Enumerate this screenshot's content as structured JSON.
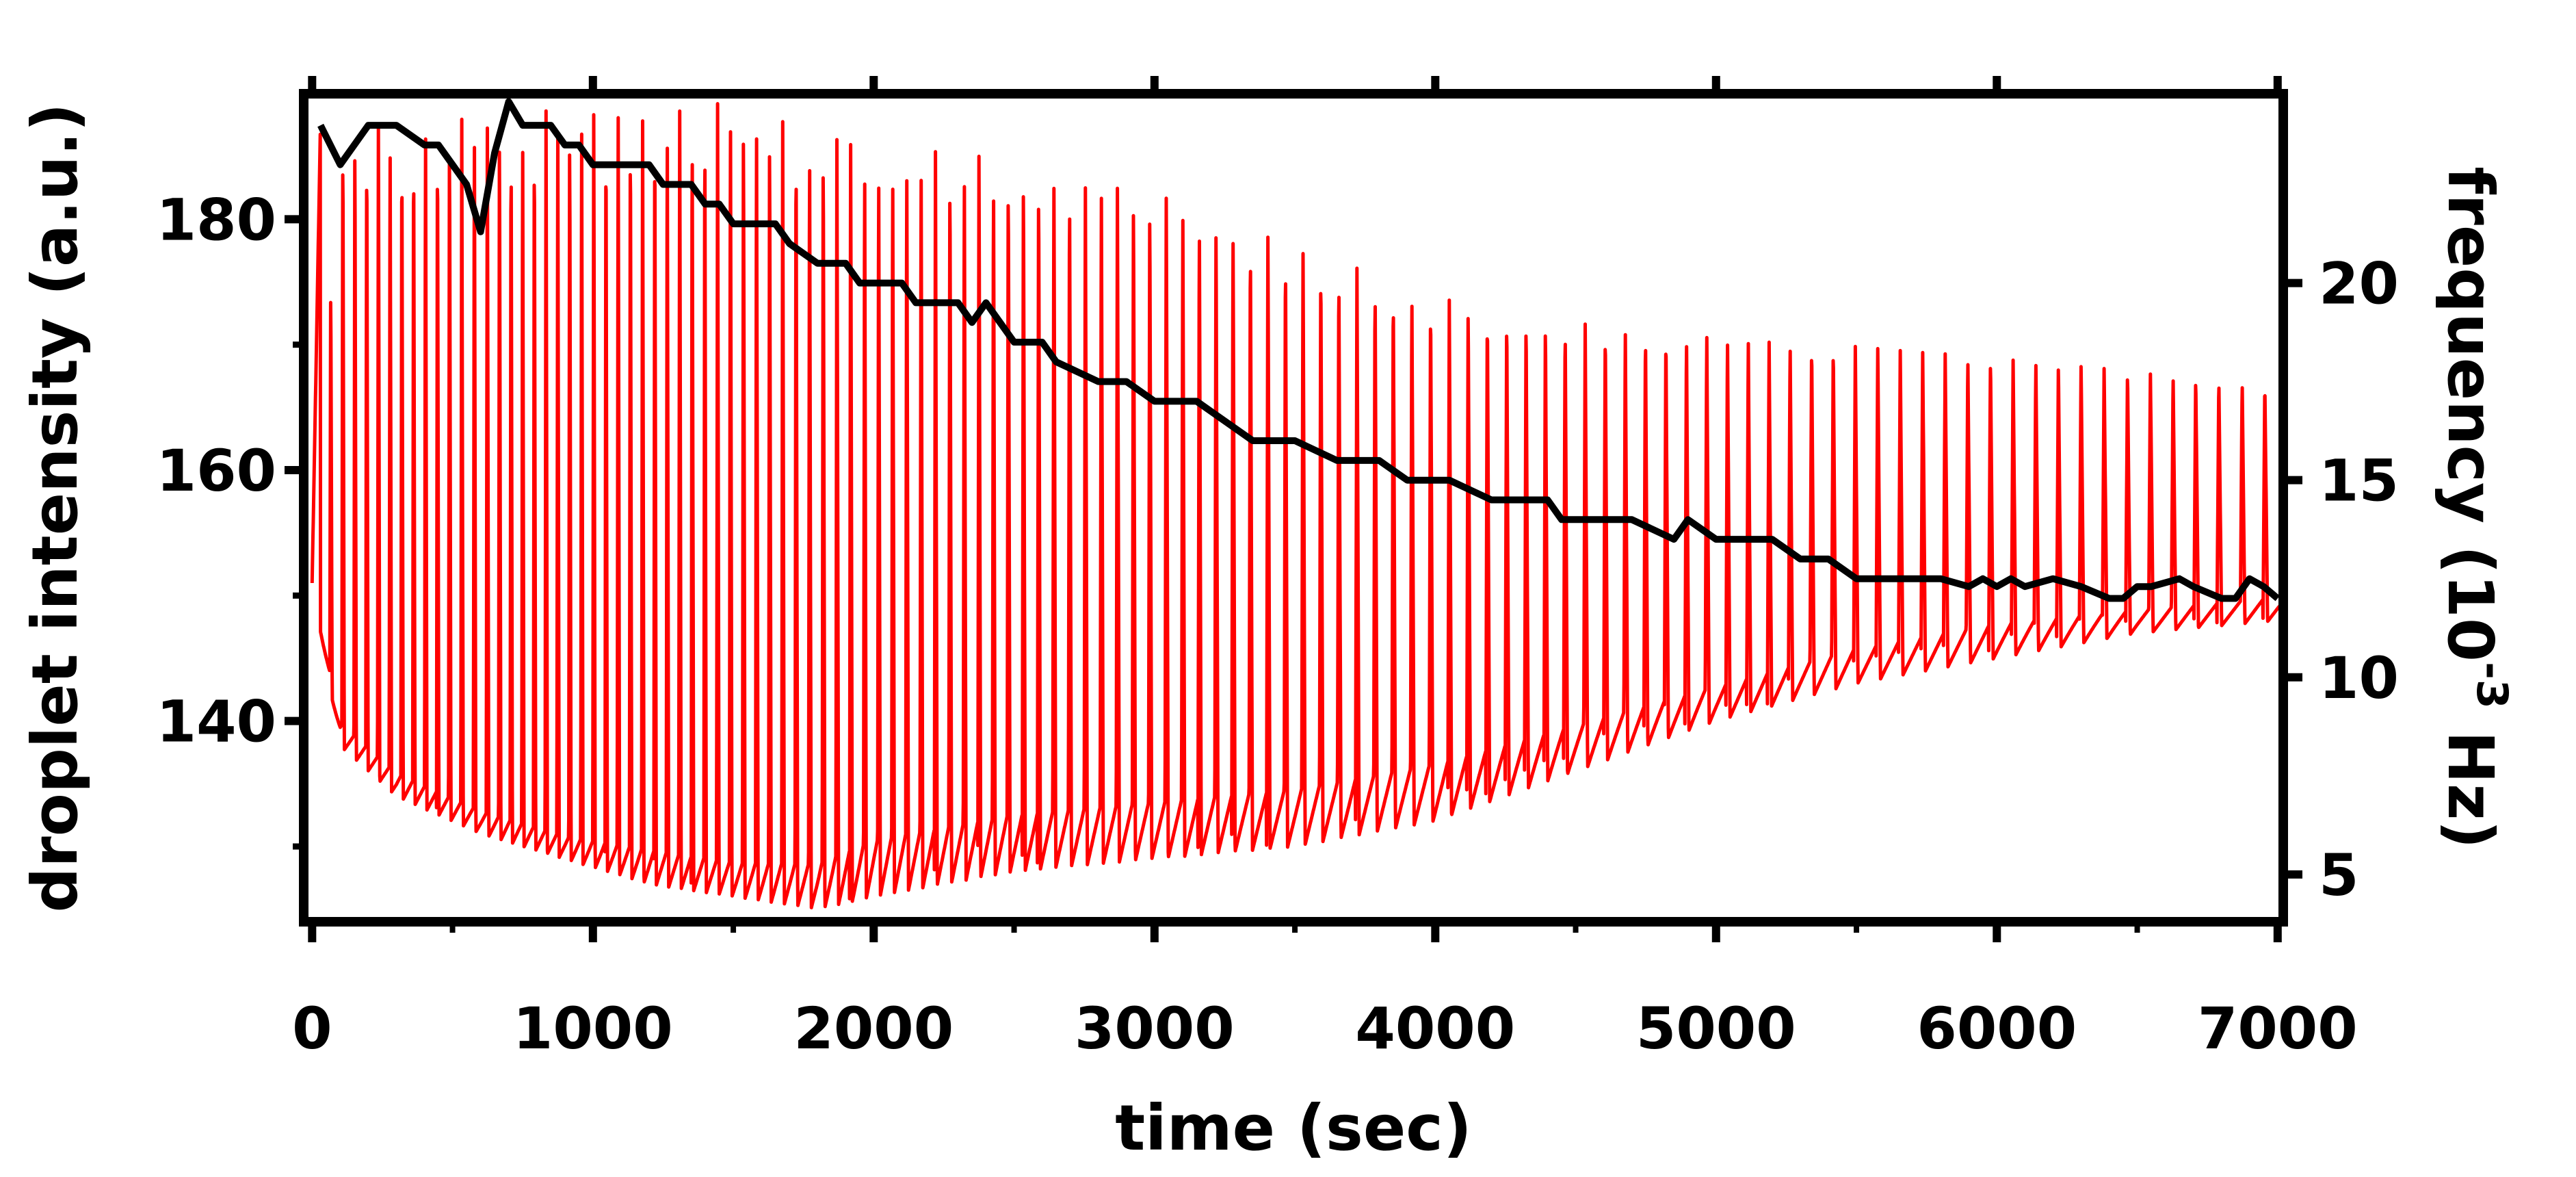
{
  "chart_data": {
    "type": "line",
    "title": "",
    "xlabel": "time (sec)",
    "ylabel_left": "droplet intensity (a.u.)",
    "ylabel_right": {
      "prefix": "frequency (10",
      "superscript": "-3",
      "suffix": " Hz)"
    },
    "xlim": [
      -30,
      7020
    ],
    "ylim_left": [
      124,
      190
    ],
    "ylim_right": [
      3.8,
      24.8
    ],
    "x_ticks": [
      0,
      1000,
      2000,
      3000,
      4000,
      5000,
      6000,
      7000
    ],
    "x_tick_labels": [
      "0",
      "1000",
      "2000",
      "3000",
      "4000",
      "5000",
      "6000",
      "7000"
    ],
    "y_left_ticks": [
      140,
      160,
      180
    ],
    "y_left_tick_labels": [
      "140",
      "160",
      "180"
    ],
    "y_right_ticks": [
      5,
      10,
      15,
      20
    ],
    "y_right_tick_labels": [
      "5",
      "10",
      "15",
      "20"
    ],
    "grid": false,
    "legend": "none",
    "colors": {
      "intensity": "#ff0000",
      "frequency": "#000000",
      "axes": "#000000"
    },
    "series": [
      {
        "axis": "left",
        "color": "#ff0000",
        "style": "periodic oscillation (spikes)",
        "envelope_t": [
          0,
          100,
          300,
          600,
          900,
          1200,
          1500,
          1800,
          2000,
          2500,
          3000,
          3500,
          4000,
          4500,
          5000,
          5500,
          6000,
          6500,
          7000
        ],
        "peak": [
          151,
          188,
          188,
          189,
          189,
          190,
          190,
          188,
          186,
          185,
          182,
          178,
          174,
          172,
          171,
          170,
          169,
          168,
          167
        ],
        "trough": [
          151,
          138,
          134,
          131,
          129,
          127,
          126,
          125,
          126,
          128,
          129,
          130,
          132,
          136,
          140,
          143,
          145,
          147,
          148
        ],
        "base": [
          151,
          140,
          136,
          133,
          131,
          130,
          129,
          129,
          131,
          133,
          134,
          135,
          137,
          140,
          143,
          146,
          148,
          149,
          150
        ]
      },
      {
        "axis": "right",
        "color": "#000000",
        "x": [
          30,
          100,
          150,
          200,
          300,
          400,
          450,
          500,
          550,
          600,
          650,
          700,
          750,
          850,
          900,
          950,
          1000,
          1200,
          1250,
          1350,
          1400,
          1450,
          1500,
          1650,
          1700,
          1800,
          1900,
          1950,
          2100,
          2150,
          2300,
          2350,
          2400,
          2450,
          2500,
          2600,
          2650,
          2800,
          2900,
          3000,
          3050,
          3150,
          3250,
          3350,
          3450,
          3500,
          3650,
          3800,
          3900,
          4000,
          4050,
          4200,
          4350,
          4400,
          4450,
          4500,
          4550,
          4700,
          4850,
          4900,
          5000,
          5100,
          5200,
          5300,
          5400,
          5500,
          5600,
          5700,
          5800,
          5900,
          5950,
          6000,
          6050,
          6100,
          6200,
          6300,
          6400,
          6450,
          6500,
          6550,
          6650,
          6700,
          6800,
          6850,
          6900,
          6950,
          7000
        ],
        "y": [
          24.0,
          23.0,
          23.5,
          24.0,
          24.0,
          23.5,
          23.5,
          23.0,
          22.5,
          21.3,
          23.3,
          24.6,
          24.0,
          24.0,
          23.5,
          23.5,
          23.0,
          23.0,
          22.5,
          22.5,
          22.0,
          22.0,
          21.5,
          21.5,
          21.0,
          20.5,
          20.5,
          20.0,
          20.0,
          19.5,
          19.5,
          19.0,
          19.5,
          19.0,
          18.5,
          18.5,
          18.0,
          17.5,
          17.5,
          17.0,
          17.0,
          17.0,
          16.5,
          16.0,
          16.0,
          16.0,
          15.5,
          15.5,
          15.0,
          15.0,
          15.0,
          14.5,
          14.5,
          14.5,
          14.0,
          14.0,
          14.0,
          14.0,
          13.5,
          14.0,
          13.5,
          13.5,
          13.5,
          13.0,
          13.0,
          12.5,
          12.5,
          12.5,
          12.5,
          12.3,
          12.5,
          12.3,
          12.5,
          12.3,
          12.5,
          12.3,
          12.0,
          12.0,
          12.3,
          12.3,
          12.5,
          12.3,
          12.0,
          12.0,
          12.5,
          12.3,
          12.0
        ]
      }
    ]
  }
}
